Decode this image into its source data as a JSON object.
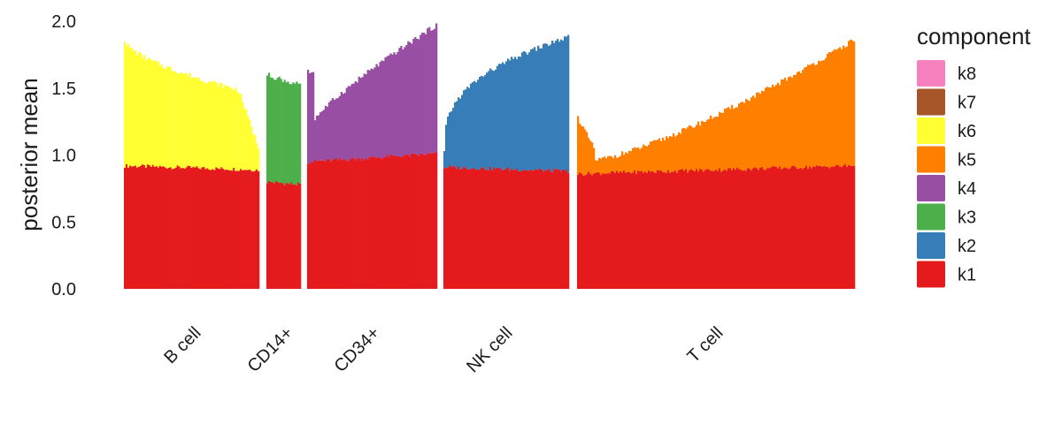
{
  "chart_data": {
    "type": "bar",
    "stacked": true,
    "ylabel": "posterior mean",
    "ylim": [
      0,
      2.0
    ],
    "yticks": [
      "0.0",
      "0.5",
      "1.0",
      "1.5",
      "2.0"
    ],
    "grid": false,
    "legend": {
      "title": "component",
      "placement": "right",
      "entries": [
        "k8",
        "k7",
        "k6",
        "k5",
        "k4",
        "k3",
        "k2",
        "k1"
      ]
    },
    "colors": {
      "k1": "#E41A1C",
      "k2": "#377EB8",
      "k3": "#4DAF4A",
      "k4": "#984EA3",
      "k5": "#FF7F00",
      "k6": "#FFFF33",
      "k7": "#A65628",
      "k8": "#F781BF"
    },
    "groups": [
      {
        "label": "B cell",
        "k1": {
          "start": 0.92,
          "end": 0.89
        },
        "main": "k6",
        "total": {
          "start": 1.86,
          "end": 1.04
        }
      },
      {
        "label": "CD14+",
        "k1": {
          "start": 0.8,
          "end": 0.78
        },
        "main": "k3",
        "total": {
          "start": 1.6,
          "end": 1.52
        }
      },
      {
        "label": "CD34+",
        "k1": {
          "start": 0.95,
          "end": 1.01
        },
        "main": "k4",
        "total": {
          "start": 1.2,
          "end": 1.97
        }
      },
      {
        "label": "NK cell",
        "k1": {
          "start": 0.91,
          "end": 0.88
        },
        "main": "k2",
        "total": {
          "start": 1.02,
          "end": 1.88
        }
      },
      {
        "label": "T cell",
        "k1": {
          "start": 0.86,
          "end": 0.92
        },
        "main": "k5",
        "total": {
          "start": 0.9,
          "end": 1.86
        }
      }
    ]
  }
}
